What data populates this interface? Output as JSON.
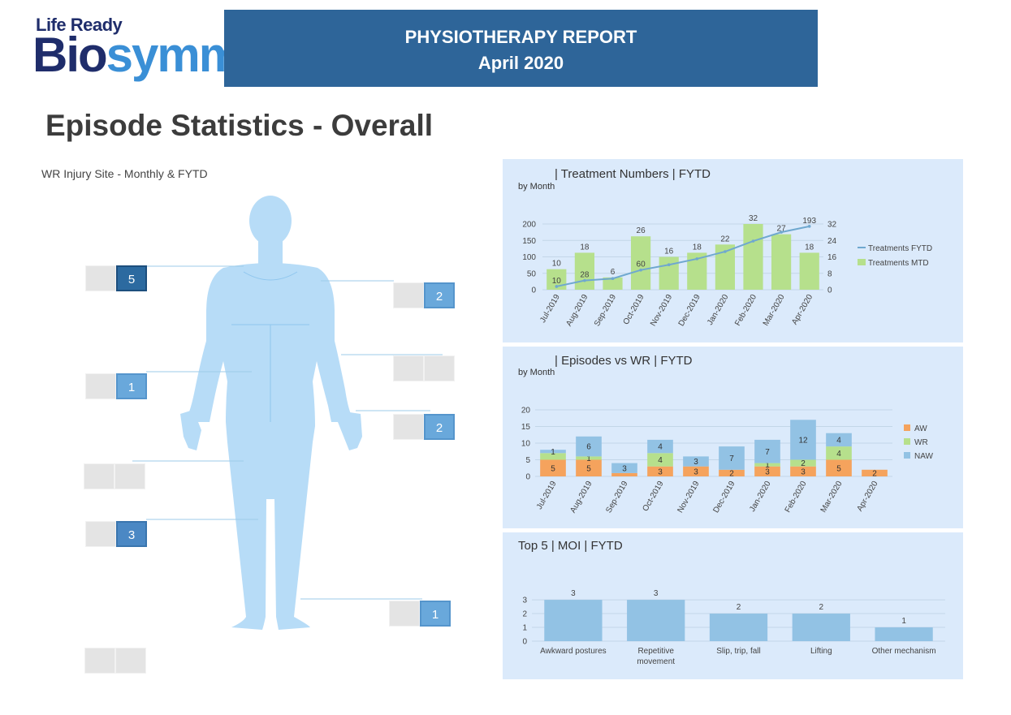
{
  "header": {
    "logo_top": "Life Ready",
    "logo_bio": "Bio",
    "logo_symm": "symm",
    "report_title": "PHYSIOTHERAPY REPORT",
    "report_period": "April 2020"
  },
  "page_title": "Episode Statistics - Overall",
  "body_map": {
    "subtitle": "WR Injury Site - Monthly & FYTD",
    "sites": [
      {
        "value": "5"
      },
      {
        "value": "2"
      },
      {
        "value": ""
      },
      {
        "value": "1"
      },
      {
        "value": "2"
      },
      {
        "value": ""
      },
      {
        "value": "3"
      },
      {
        "value": "1"
      },
      {
        "value": ""
      }
    ]
  },
  "chart_data": [
    {
      "type": "bar",
      "title": "| Treatment Numbers | FYTD",
      "subtitle": "by Month",
      "categories": [
        "Jul-2019",
        "Aug-2019",
        "Sep-2019",
        "Oct-2019",
        "Nov-2019",
        "Dec-2019",
        "Jan-2020",
        "Feb-2020",
        "Mar-2020",
        "Apr-2020"
      ],
      "series": [
        {
          "name": "Treatments MTD",
          "kind": "bar",
          "axis": "right",
          "color": "#b6e08c",
          "values": [
            10,
            18,
            6,
            26,
            16,
            18,
            22,
            32,
            27,
            18
          ]
        },
        {
          "name": "Treatments FYTD",
          "kind": "line",
          "axis": "left",
          "color": "#6fa8cf",
          "values": [
            10,
            28,
            34,
            60,
            76,
            94,
            116,
            148,
            175,
            193
          ]
        }
      ],
      "point_labels": {
        "line_indices": [
          0,
          1,
          3,
          9
        ],
        "line_values": [
          "10",
          "28",
          "60",
          "193"
        ]
      },
      "y_left": {
        "ticks": [
          0,
          50,
          100,
          150,
          200
        ],
        "range": [
          0,
          200
        ]
      },
      "y_right": {
        "ticks": [
          0,
          8,
          16,
          24,
          32
        ],
        "range": [
          0,
          32
        ]
      },
      "legend_position": "right"
    },
    {
      "type": "bar",
      "stacked": true,
      "title": "| Episodes vs WR | FYTD",
      "subtitle": "by Month",
      "categories": [
        "Jul-2019",
        "Aug-2019",
        "Sep-2019",
        "Oct-2019",
        "Nov-2019",
        "Dec-2019",
        "Jan-2020",
        "Feb-2020",
        "Mar-2020",
        "Apr-2020"
      ],
      "series": [
        {
          "name": "AW",
          "color": "#f5a35d",
          "values": [
            5,
            5,
            1,
            3,
            3,
            2,
            3,
            3,
            5,
            2
          ],
          "labels": [
            "5",
            "5",
            "",
            "3",
            "3",
            "2",
            "3",
            "3",
            "5",
            "2"
          ]
        },
        {
          "name": "WR",
          "color": "#b6e08c",
          "values": [
            2,
            1,
            0,
            4,
            0,
            0,
            1,
            2,
            4,
            0
          ],
          "labels": [
            "",
            "1",
            "",
            "4",
            "",
            "",
            "1",
            "2",
            "4",
            ""
          ]
        },
        {
          "name": "NAW",
          "color": "#92c2e4",
          "values": [
            1,
            6,
            3,
            4,
            3,
            7,
            7,
            12,
            4,
            0
          ],
          "labels": [
            "1",
            "6",
            "3",
            "4",
            "3",
            "7",
            "7",
            "12",
            "4",
            ""
          ]
        }
      ],
      "y": {
        "ticks": [
          0,
          5,
          10,
          15,
          20
        ],
        "range": [
          0,
          20
        ]
      },
      "legend_position": "right"
    },
    {
      "type": "bar",
      "title": "Top 5 | MOI | FYTD",
      "categories": [
        [
          "Awkward postures"
        ],
        [
          "Repetitive",
          "movement"
        ],
        [
          "Slip, trip, fall"
        ],
        [
          "Lifting"
        ],
        [
          "Other mechanism"
        ]
      ],
      "values": [
        3,
        3,
        2,
        2,
        1
      ],
      "color": "#92c2e4",
      "y": {
        "ticks": [
          0,
          1,
          2,
          3
        ],
        "range": [
          0,
          3.3
        ]
      }
    }
  ]
}
